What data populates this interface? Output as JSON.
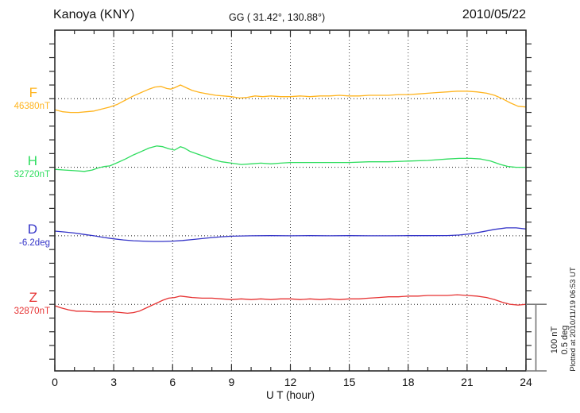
{
  "header": {
    "station": "Kanoya (KNY)",
    "coordinates": "GG ( 31.42°, 130.88°)",
    "date": "2010/05/22"
  },
  "x_axis": {
    "label": "U T (hour)"
  },
  "scale_bar": {
    "line1": "100 nT",
    "line2": "0.5 deg"
  },
  "footer": {
    "plotted_at": "Plotted at 2010/11/19 06:53 UT"
  },
  "colors": {
    "axis": "#2b2b2b",
    "grid": "#3a3a3a",
    "scale_bar": "#777777",
    "text": "#111111"
  },
  "chart_data": {
    "type": "line",
    "title": "Kanoya (KNY)",
    "subtitle_geographic": "GG ( 31.42°, 130.88°)",
    "date": "2010/05/22",
    "xlabel": "U T (hour)",
    "x_range": [
      0,
      24
    ],
    "x_ticks": [
      0,
      3,
      6,
      9,
      12,
      15,
      18,
      21,
      24
    ],
    "x_minor_tick_step_hours": 1,
    "grid": "dotted vertical lines every 3 hours; dotted horizontal baseline per trace",
    "y_meaning": "offset from each component baseline value; one plot division equals 100 nT or 0.5 deg",
    "scale_divisions": {
      "nT": 100,
      "deg": 0.5
    },
    "series": [
      {
        "name": "F",
        "baseline_label": "46380nT",
        "unit": "nT",
        "color": "#ffb41e",
        "x": [
          0,
          0.4,
          0.8,
          1.2,
          1.6,
          2,
          2.4,
          2.8,
          3.2,
          3.6,
          4,
          4.4,
          4.8,
          5.1,
          5.4,
          5.7,
          5.9,
          6.1,
          6.4,
          6.7,
          7,
          7.4,
          7.8,
          8.2,
          8.6,
          9,
          9.4,
          9.8,
          10.2,
          10.6,
          11,
          11.5,
          12,
          12.5,
          13,
          13.5,
          14,
          14.5,
          15,
          15.5,
          16,
          16.5,
          17,
          17.5,
          18,
          18.5,
          19,
          19.5,
          20,
          20.5,
          21,
          21.5,
          22,
          22.4,
          22.8,
          23.2,
          23.6,
          24
        ],
        "y": [
          -16,
          -19,
          -20,
          -20,
          -19,
          -18,
          -15,
          -12,
          -8,
          -2,
          4,
          9,
          14,
          17,
          18,
          15,
          14,
          16,
          20,
          16,
          12,
          9,
          7,
          5,
          4,
          3,
          1,
          2,
          4,
          3,
          4,
          3,
          3,
          4,
          3,
          4,
          4,
          5,
          4,
          4,
          5,
          5,
          5,
          6,
          6,
          7,
          8,
          9,
          10,
          11,
          11,
          10,
          8,
          5,
          0,
          -6,
          -11,
          -12
        ]
      },
      {
        "name": "H",
        "baseline_label": "32720nT",
        "unit": "nT",
        "color": "#2edd5e",
        "x": [
          0,
          0.5,
          1,
          1.5,
          1.9,
          2.2,
          2.5,
          2.8,
          3.2,
          3.6,
          4,
          4.4,
          4.8,
          5.2,
          5.5,
          5.8,
          6.1,
          6.4,
          6.6,
          6.9,
          7.3,
          7.7,
          8.1,
          8.5,
          9,
          9.5,
          10,
          10.5,
          11,
          11.5,
          12,
          13,
          14,
          15,
          16,
          17,
          18,
          19,
          20,
          20.6,
          21.2,
          21.7,
          22.2,
          22.7,
          23.1,
          23.5,
          24
        ],
        "y": [
          -3,
          -4,
          -5,
          -6,
          -4,
          -1,
          1,
          2,
          7,
          12,
          18,
          23,
          28,
          31,
          30,
          27,
          25,
          30,
          28,
          23,
          19,
          15,
          11,
          8,
          6,
          4,
          5,
          6,
          5,
          6,
          7,
          7,
          7,
          7,
          8,
          8,
          9,
          10,
          12,
          13,
          13,
          12,
          9,
          4,
          1,
          0,
          0
        ]
      },
      {
        "name": "D",
        "baseline_label": "-6.2deg",
        "unit": "deg",
        "color": "#3434c8",
        "x": [
          0,
          0.5,
          1,
          1.5,
          2,
          2.5,
          3,
          3.5,
          4,
          4.5,
          5,
          5.5,
          6,
          6.5,
          7,
          7.5,
          8,
          8.5,
          9,
          9.5,
          10,
          11,
          12,
          13,
          14,
          15,
          16,
          17,
          18,
          19,
          20,
          20.6,
          21.2,
          21.8,
          22.4,
          23,
          23.5,
          24
        ],
        "y": [
          0.034,
          0.028,
          0.02,
          0.01,
          0,
          -0.012,
          -0.022,
          -0.03,
          -0.036,
          -0.039,
          -0.041,
          -0.041,
          -0.039,
          -0.034,
          -0.027,
          -0.02,
          -0.013,
          -0.007,
          -0.003,
          -0.001,
          0,
          0.001,
          0,
          0.001,
          0,
          0.001,
          0,
          0,
          0.001,
          0.001,
          0.002,
          0.006,
          0.015,
          0.03,
          0.047,
          0.058,
          0.058,
          0.05
        ]
      },
      {
        "name": "Z",
        "baseline_label": "32870nT",
        "unit": "nT",
        "color": "#e63232",
        "x": [
          0,
          0.3,
          0.7,
          1.1,
          1.5,
          2,
          2.5,
          3,
          3.4,
          3.7,
          4,
          4.3,
          4.6,
          4.9,
          5.2,
          5.5,
          5.8,
          6.1,
          6.4,
          6.7,
          7,
          7.5,
          8,
          8.5,
          9,
          9.5,
          10,
          10.5,
          11,
          11.5,
          12,
          12.5,
          13,
          13.5,
          14,
          14.5,
          15,
          15.5,
          16,
          16.5,
          17,
          17.5,
          18,
          18.5,
          19,
          19.5,
          20,
          20.5,
          21,
          21.5,
          22,
          22.4,
          22.8,
          23.2,
          23.6,
          24
        ],
        "y": [
          -2,
          -5,
          -8,
          -10,
          -10,
          -11,
          -11,
          -11,
          -12,
          -13,
          -12,
          -10,
          -6,
          -2,
          2,
          6,
          9,
          10,
          12,
          11,
          10,
          9,
          9,
          8,
          7,
          8,
          7,
          8,
          7,
          8,
          8,
          7,
          8,
          7,
          8,
          7,
          8,
          8,
          9,
          10,
          11,
          11,
          12,
          12,
          13,
          13,
          13,
          14,
          13,
          12,
          10,
          7,
          3,
          0,
          -1,
          0
        ]
      }
    ]
  }
}
